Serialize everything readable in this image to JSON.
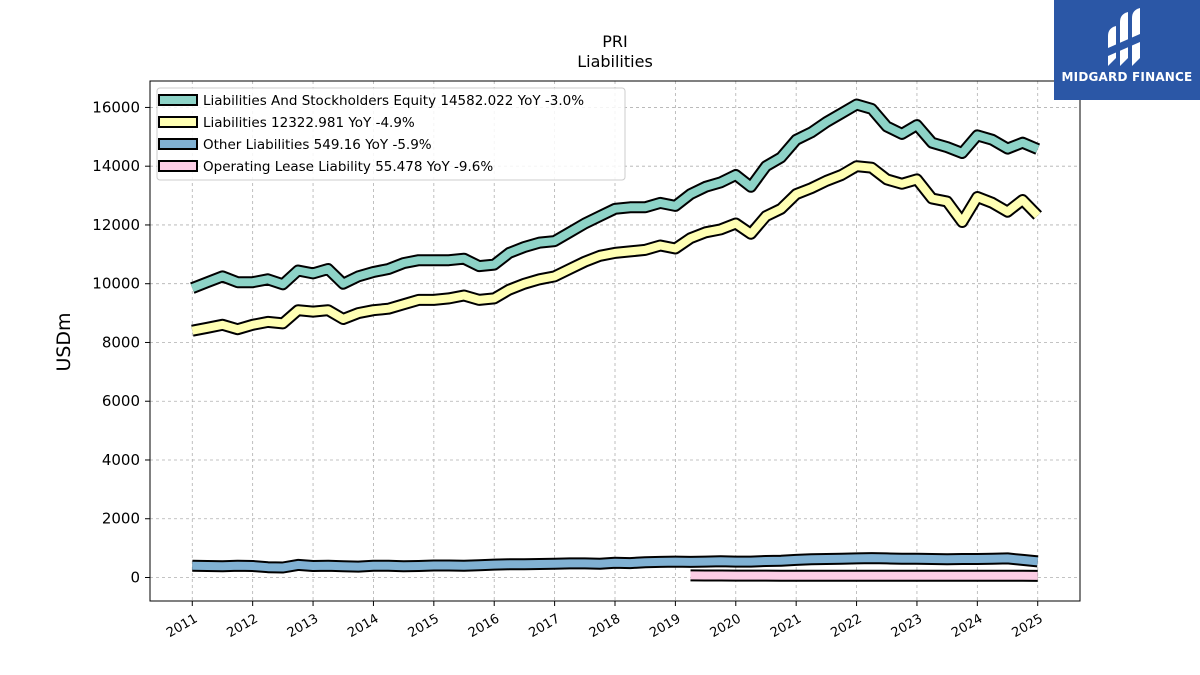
{
  "chart_data": {
    "type": "area",
    "title": "PRI",
    "subtitle": "Liabilities",
    "ylabel": "USDm",
    "xlabel": "",
    "ylim": [
      -800,
      16900
    ],
    "xlim": [
      2010.3,
      2025.7
    ],
    "grid": true,
    "legend_position": "top-left",
    "yticks": [
      0,
      2000,
      4000,
      6000,
      8000,
      10000,
      12000,
      14000,
      16000
    ],
    "xticks": [
      "2011",
      "2012",
      "2013",
      "2014",
      "2015",
      "2016",
      "2017",
      "2018",
      "2019",
      "2020",
      "2021",
      "2022",
      "2023",
      "2024",
      "2025"
    ],
    "series": [
      {
        "name": "Liabilities And Stockholders Equity",
        "legend_label": "Liabilities And Stockholders Equity  14582.022 YoY -3.0%",
        "color": "#8dd3c7",
        "x": [
          2011.0,
          2011.25,
          2011.5,
          2011.75,
          2012.0,
          2012.25,
          2012.5,
          2012.75,
          2013.0,
          2013.25,
          2013.5,
          2013.75,
          2014.0,
          2014.25,
          2014.5,
          2014.75,
          2015.0,
          2015.25,
          2015.5,
          2015.75,
          2016.0,
          2016.25,
          2016.5,
          2016.75,
          2017.0,
          2017.25,
          2017.5,
          2017.75,
          2018.0,
          2018.25,
          2018.5,
          2018.75,
          2019.0,
          2019.25,
          2019.5,
          2019.75,
          2020.0,
          2020.25,
          2020.5,
          2020.75,
          2021.0,
          2021.25,
          2021.5,
          2021.75,
          2022.0,
          2022.25,
          2022.5,
          2022.75,
          2023.0,
          2023.25,
          2023.5,
          2023.75,
          2024.0,
          2024.25,
          2024.5,
          2024.75,
          2025.0
        ],
        "values": [
          9850,
          10050,
          10250,
          10050,
          10050,
          10150,
          9980,
          10450,
          10350,
          10500,
          10000,
          10250,
          10400,
          10500,
          10700,
          10800,
          10800,
          10800,
          10850,
          10600,
          10650,
          11050,
          11250,
          11400,
          11450,
          11750,
          12050,
          12300,
          12550,
          12600,
          12600,
          12750,
          12650,
          13050,
          13300,
          13450,
          13700,
          13300,
          14000,
          14300,
          14900,
          15150,
          15500,
          15800,
          16100,
          15950,
          15350,
          15100,
          15400,
          14800,
          14650,
          14450,
          15050,
          14900,
          14600,
          14800,
          14582
        ]
      },
      {
        "name": "Liabilities",
        "legend_label": "Liabilities  12322.981 YoY -4.9%",
        "color": "#ffffb3",
        "x": [
          2011.0,
          2011.25,
          2011.5,
          2011.75,
          2012.0,
          2012.25,
          2012.5,
          2012.75,
          2013.0,
          2013.25,
          2013.5,
          2013.75,
          2014.0,
          2014.25,
          2014.5,
          2014.75,
          2015.0,
          2015.25,
          2015.5,
          2015.75,
          2016.0,
          2016.25,
          2016.5,
          2016.75,
          2017.0,
          2017.25,
          2017.5,
          2017.75,
          2018.0,
          2018.25,
          2018.5,
          2018.75,
          2019.0,
          2019.25,
          2019.5,
          2019.75,
          2020.0,
          2020.25,
          2020.5,
          2020.75,
          2021.0,
          2021.25,
          2021.5,
          2021.75,
          2022.0,
          2022.25,
          2022.5,
          2022.75,
          2023.0,
          2023.25,
          2023.5,
          2023.75,
          2024.0,
          2024.25,
          2024.5,
          2024.75,
          2025.0
        ],
        "values": [
          8400,
          8500,
          8600,
          8450,
          8600,
          8700,
          8650,
          9100,
          9050,
          9100,
          8800,
          9000,
          9100,
          9150,
          9300,
          9450,
          9450,
          9500,
          9600,
          9450,
          9500,
          9800,
          10000,
          10150,
          10250,
          10500,
          10750,
          10950,
          11050,
          11100,
          11150,
          11300,
          11200,
          11550,
          11750,
          11850,
          12050,
          11700,
          12300,
          12550,
          13050,
          13250,
          13500,
          13700,
          14000,
          13950,
          13550,
          13400,
          13550,
          12900,
          12800,
          12100,
          12950,
          12750,
          12450,
          12850,
          12323
        ]
      },
      {
        "name": "Other Liabilities",
        "legend_label": "Other Liabilities  549.16 YoY -5.9%",
        "color": "#80b1d3",
        "x": [
          2011.0,
          2011.25,
          2011.5,
          2011.75,
          2012.0,
          2012.25,
          2012.5,
          2012.75,
          2013.0,
          2013.25,
          2013.5,
          2013.75,
          2014.0,
          2014.25,
          2014.5,
          2014.75,
          2015.0,
          2015.25,
          2015.5,
          2015.75,
          2016.0,
          2016.25,
          2016.5,
          2016.75,
          2017.0,
          2017.25,
          2017.5,
          2017.75,
          2018.0,
          2018.25,
          2018.5,
          2018.75,
          2019.0,
          2019.25,
          2019.5,
          2019.75,
          2020.0,
          2020.25,
          2020.5,
          2020.75,
          2021.0,
          2021.25,
          2021.5,
          2021.75,
          2022.0,
          2022.25,
          2022.5,
          2022.75,
          2023.0,
          2023.25,
          2023.5,
          2023.75,
          2024.0,
          2024.25,
          2024.5,
          2024.75,
          2025.0
        ],
        "values": [
          400,
          390,
          380,
          400,
          390,
          350,
          340,
          430,
          390,
          400,
          380,
          370,
          400,
          400,
          380,
          390,
          410,
          410,
          400,
          420,
          440,
          450,
          450,
          460,
          470,
          480,
          480,
          470,
          500,
          490,
          520,
          530,
          540,
          530,
          540,
          550,
          540,
          540,
          560,
          570,
          600,
          620,
          630,
          640,
          650,
          660,
          650,
          640,
          640,
          630,
          620,
          630,
          630,
          640,
          650,
          600,
          549
        ]
      },
      {
        "name": "Operating Lease Liability",
        "legend_label": "Operating Lease Liability  55.478 YoY -9.6%",
        "color": "#fccde5",
        "x": [
          2019.25,
          2019.5,
          2019.75,
          2020.0,
          2020.25,
          2020.5,
          2020.75,
          2021.0,
          2021.25,
          2021.5,
          2021.75,
          2022.0,
          2022.25,
          2022.5,
          2022.75,
          2023.0,
          2023.25,
          2023.5,
          2023.75,
          2024.0,
          2024.25,
          2024.5,
          2024.75,
          2025.0
        ],
        "values": [
          70,
          68,
          67,
          66,
          65,
          64,
          62,
          62,
          62,
          61,
          61,
          60,
          60,
          60,
          60,
          59,
          58,
          59,
          60,
          60,
          60,
          59,
          58,
          55
        ]
      }
    ]
  },
  "logo": {
    "text": "MIDGARD FINANCE",
    "background": "#2b57a6"
  }
}
